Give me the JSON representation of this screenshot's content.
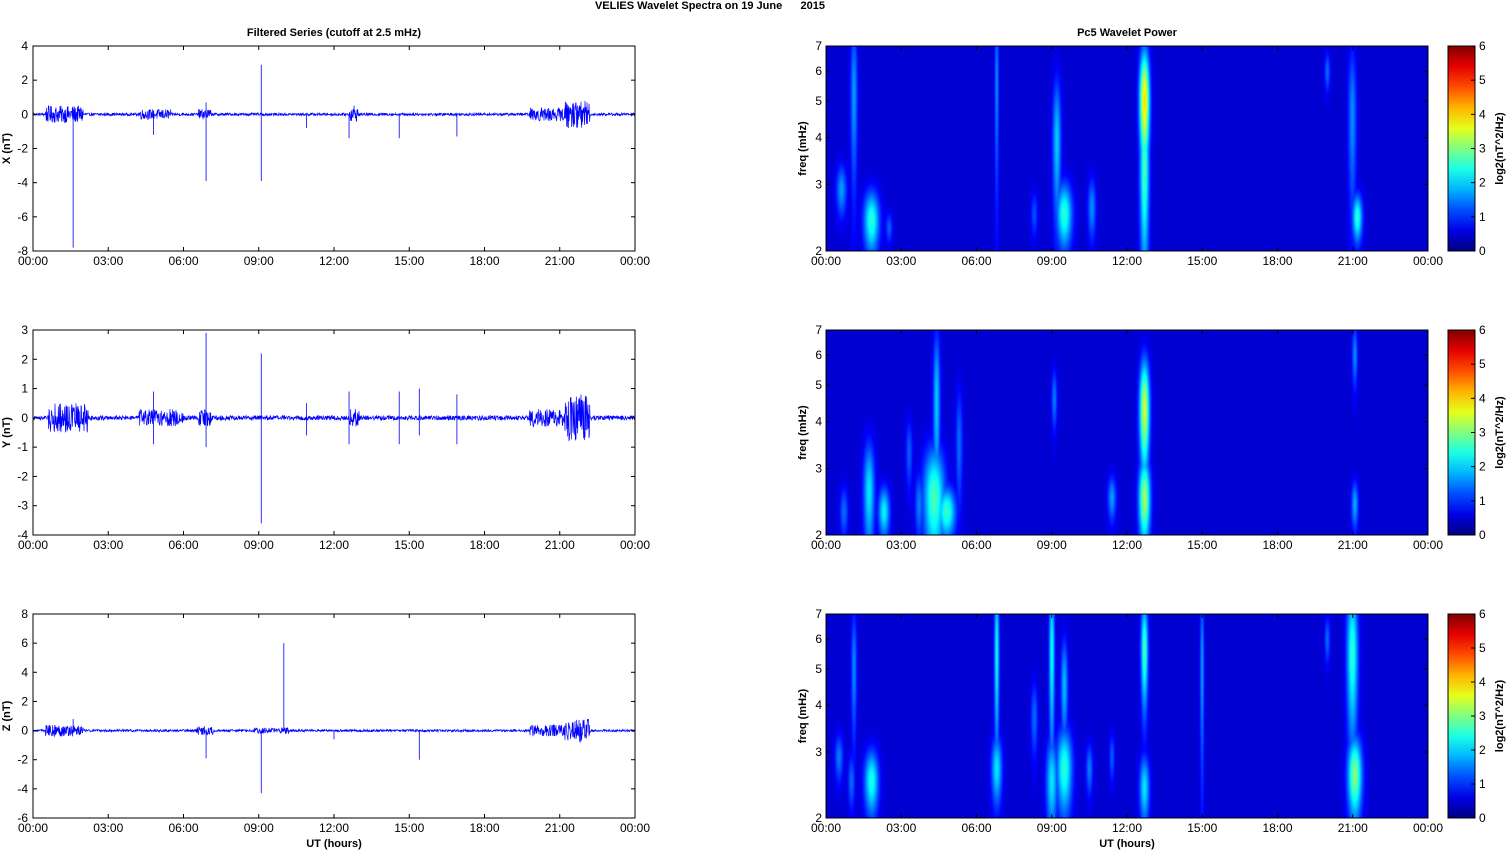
{
  "figure": {
    "suptitle": "VELIES Wavelet Spectra on 19 June      2015",
    "left_title": "Filtered Series (cutoff at 2.5 mHz)",
    "right_title": "Pc5 Wavelet Power",
    "xlabel": "UT (hours)"
  },
  "chart_data": [
    {
      "type": "line",
      "name": "X component filtered series",
      "ylabel": "X (nT)",
      "xlim": [
        0,
        24
      ],
      "ylim": [
        -8,
        4
      ],
      "x_ticks": [
        "00:00",
        "03:00",
        "06:00",
        "09:00",
        "12:00",
        "15:00",
        "18:00",
        "21:00",
        "00:00"
      ],
      "y_ticks": [
        "4",
        "2",
        "0",
        "-2",
        "-4",
        "-6",
        "-8"
      ],
      "color": "#0000ff",
      "noise_bursts": [
        [
          0.5,
          2.0,
          0.5
        ],
        [
          4.2,
          5.5,
          0.3
        ],
        [
          6.6,
          7.1,
          0.3
        ],
        [
          12.6,
          13.0,
          0.4
        ],
        [
          19.8,
          21.2,
          0.4
        ],
        [
          21.2,
          22.2,
          0.8
        ]
      ],
      "spikes": [
        [
          1.6,
          -7.8
        ],
        [
          4.8,
          -1.2
        ],
        [
          6.9,
          -3.9
        ],
        [
          6.9,
          0.7
        ],
        [
          9.1,
          2.9
        ],
        [
          9.1,
          -3.9
        ],
        [
          10.9,
          -0.8
        ],
        [
          12.6,
          -1.4
        ],
        [
          12.8,
          0.5
        ],
        [
          14.6,
          -1.4
        ],
        [
          16.9,
          -1.3
        ]
      ]
    },
    {
      "type": "line",
      "name": "Y component filtered series",
      "ylabel": "Y (nT)",
      "xlim": [
        0,
        24
      ],
      "ylim": [
        -4,
        3
      ],
      "x_ticks": [
        "00:00",
        "03:00",
        "06:00",
        "09:00",
        "12:00",
        "15:00",
        "18:00",
        "21:00",
        "00:00"
      ],
      "y_ticks": [
        "3",
        "2",
        "1",
        "0",
        "-1",
        "-2",
        "-3",
        "-4"
      ],
      "color": "#0000ff",
      "noise_bursts": [
        [
          0.6,
          2.2,
          0.5
        ],
        [
          4.2,
          6.0,
          0.3
        ],
        [
          6.6,
          7.1,
          0.3
        ],
        [
          12.6,
          13.0,
          0.3
        ],
        [
          19.8,
          21.2,
          0.3
        ],
        [
          21.2,
          22.2,
          0.8
        ]
      ],
      "spikes": [
        [
          4.8,
          0.9
        ],
        [
          4.8,
          -0.9
        ],
        [
          6.9,
          2.9
        ],
        [
          6.9,
          -1.0
        ],
        [
          9.1,
          2.2
        ],
        [
          9.1,
          -3.6
        ],
        [
          10.9,
          -0.6
        ],
        [
          10.9,
          0.5
        ],
        [
          12.6,
          0.9
        ],
        [
          12.6,
          -0.9
        ],
        [
          14.6,
          0.9
        ],
        [
          14.6,
          -0.9
        ],
        [
          15.4,
          1.0
        ],
        [
          15.4,
          -0.6
        ],
        [
          16.9,
          0.8
        ],
        [
          16.9,
          -0.9
        ]
      ]
    },
    {
      "type": "line",
      "name": "Z component filtered series",
      "ylabel": "Z (nT)",
      "xlim": [
        0,
        24
      ],
      "ylim": [
        -6,
        8
      ],
      "x_ticks": [
        "00:00",
        "03:00",
        "06:00",
        "09:00",
        "12:00",
        "15:00",
        "18:00",
        "21:00",
        "00:00"
      ],
      "y_ticks": [
        "8",
        "6",
        "4",
        "2",
        "0",
        "-2",
        "-4",
        "-6"
      ],
      "color": "#0000ff",
      "noise_bursts": [
        [
          0.5,
          2.0,
          0.4
        ],
        [
          6.5,
          7.2,
          0.3
        ],
        [
          8.8,
          10.2,
          0.2
        ],
        [
          19.8,
          21.2,
          0.4
        ],
        [
          21.2,
          22.2,
          0.8
        ]
      ],
      "spikes": [
        [
          1.6,
          0.8
        ],
        [
          6.9,
          -1.9
        ],
        [
          9.1,
          -4.3
        ],
        [
          10.0,
          6.0
        ],
        [
          12.0,
          -0.6
        ],
        [
          15.4,
          -2.0
        ]
      ]
    },
    {
      "type": "heatmap",
      "name": "X Pc5 wavelet power",
      "ylabel": "freq (mHz)",
      "colorbar_label": "log2(nT^2/Hz)",
      "xlim": [
        0,
        24
      ],
      "ylim": [
        2,
        7
      ],
      "y_scale": "log",
      "clim": [
        0,
        6
      ],
      "x_ticks": [
        "00:00",
        "03:00",
        "06:00",
        "09:00",
        "12:00",
        "15:00",
        "18:00",
        "21:00",
        "00:00"
      ],
      "y_ticks": [
        "2",
        "3",
        "4",
        "5",
        "6",
        "7"
      ],
      "colorbar_ticks": [
        "0",
        "1",
        "2",
        "3",
        "4",
        "5",
        "6"
      ],
      "blobs": [
        {
          "t": 0.6,
          "f": 2.9,
          "dt": 0.15,
          "df": 0.32,
          "p": 1.3
        },
        {
          "t": 1.1,
          "f": 5.2,
          "dt": 0.1,
          "df": 1.8,
          "p": 1.3
        },
        {
          "t": 1.8,
          "f": 2.4,
          "dt": 0.22,
          "df": 0.32,
          "p": 2.2
        },
        {
          "t": 2.5,
          "f": 2.3,
          "dt": 0.1,
          "df": 0.15,
          "p": 0.9
        },
        {
          "t": 6.8,
          "f": 5.5,
          "dt": 0.06,
          "df": 2.2,
          "p": 1.2
        },
        {
          "t": 8.3,
          "f": 2.5,
          "dt": 0.1,
          "df": 0.25,
          "p": 0.8
        },
        {
          "t": 9.2,
          "f": 3.9,
          "dt": 0.12,
          "df": 1.2,
          "p": 1.6
        },
        {
          "t": 9.5,
          "f": 2.5,
          "dt": 0.22,
          "df": 0.35,
          "p": 2.2
        },
        {
          "t": 10.6,
          "f": 2.6,
          "dt": 0.12,
          "df": 0.35,
          "p": 1.2
        },
        {
          "t": 12.7,
          "f": 5.0,
          "dt": 0.14,
          "df": 1.2,
          "p": 3.8
        },
        {
          "t": 12.7,
          "f": 3.3,
          "dt": 0.13,
          "df": 1.2,
          "p": 2.4
        },
        {
          "t": 20.0,
          "f": 6.0,
          "dt": 0.08,
          "df": 0.5,
          "p": 1.0
        },
        {
          "t": 21.0,
          "f": 4.5,
          "dt": 0.12,
          "df": 1.6,
          "p": 1.2
        },
        {
          "t": 21.2,
          "f": 2.45,
          "dt": 0.14,
          "df": 0.25,
          "p": 2.2
        }
      ]
    },
    {
      "type": "heatmap",
      "name": "Y Pc5 wavelet power",
      "ylabel": "freq (mHz)",
      "colorbar_label": "log2(nT^2/Hz)",
      "xlim": [
        0,
        24
      ],
      "ylim": [
        2,
        7
      ],
      "y_scale": "log",
      "clim": [
        0,
        6
      ],
      "x_ticks": [
        "00:00",
        "03:00",
        "06:00",
        "09:00",
        "12:00",
        "15:00",
        "18:00",
        "21:00",
        "00:00"
      ],
      "y_ticks": [
        "2",
        "3",
        "4",
        "5",
        "6",
        "7"
      ],
      "colorbar_ticks": [
        "0",
        "1",
        "2",
        "3",
        "4",
        "5",
        "6"
      ],
      "blobs": [
        {
          "t": 0.7,
          "f": 2.3,
          "dt": 0.12,
          "df": 0.25,
          "p": 1.0
        },
        {
          "t": 1.7,
          "f": 2.6,
          "dt": 0.16,
          "df": 0.6,
          "p": 1.8
        },
        {
          "t": 2.3,
          "f": 2.3,
          "dt": 0.16,
          "df": 0.25,
          "p": 1.9
        },
        {
          "t": 3.3,
          "f": 3.3,
          "dt": 0.1,
          "df": 0.5,
          "p": 0.9
        },
        {
          "t": 3.7,
          "f": 2.4,
          "dt": 0.12,
          "df": 0.35,
          "p": 1.1
        },
        {
          "t": 4.3,
          "f": 2.5,
          "dt": 0.3,
          "df": 0.6,
          "p": 2.4
        },
        {
          "t": 4.4,
          "f": 4.5,
          "dt": 0.1,
          "df": 1.6,
          "p": 1.6
        },
        {
          "t": 4.8,
          "f": 2.3,
          "dt": 0.25,
          "df": 0.25,
          "p": 2.3
        },
        {
          "t": 5.3,
          "f": 3.5,
          "dt": 0.1,
          "df": 0.9,
          "p": 1.0
        },
        {
          "t": 9.1,
          "f": 4.6,
          "dt": 0.08,
          "df": 0.6,
          "p": 1.1
        },
        {
          "t": 11.4,
          "f": 2.5,
          "dt": 0.12,
          "df": 0.25,
          "p": 1.3
        },
        {
          "t": 12.7,
          "f": 4.3,
          "dt": 0.14,
          "df": 1.0,
          "p": 3.3
        },
        {
          "t": 12.7,
          "f": 2.5,
          "dt": 0.16,
          "df": 0.45,
          "p": 3.0
        },
        {
          "t": 21.1,
          "f": 6.0,
          "dt": 0.08,
          "df": 0.8,
          "p": 1.2
        },
        {
          "t": 21.1,
          "f": 2.4,
          "dt": 0.1,
          "df": 0.25,
          "p": 1.4
        }
      ]
    },
    {
      "type": "heatmap",
      "name": "Z Pc5 wavelet power",
      "ylabel": "freq (mHz)",
      "colorbar_label": "log2(nT^2/Hz)",
      "xlim": [
        0,
        24
      ],
      "ylim": [
        2,
        7
      ],
      "y_scale": "log",
      "clim": [
        0,
        6
      ],
      "x_ticks": [
        "00:00",
        "03:00",
        "06:00",
        "09:00",
        "12:00",
        "15:00",
        "18:00",
        "21:00",
        "00:00"
      ],
      "y_ticks": [
        "2",
        "3",
        "4",
        "5",
        "6",
        "7"
      ],
      "colorbar_ticks": [
        "0",
        "1",
        "2",
        "3",
        "4",
        "5",
        "6"
      ],
      "blobs": [
        {
          "t": 0.5,
          "f": 2.9,
          "dt": 0.12,
          "df": 0.3,
          "p": 1.1
        },
        {
          "t": 1.0,
          "f": 2.5,
          "dt": 0.1,
          "df": 0.3,
          "p": 1.0
        },
        {
          "t": 1.1,
          "f": 5.0,
          "dt": 0.08,
          "df": 1.4,
          "p": 1.2
        },
        {
          "t": 1.8,
          "f": 2.5,
          "dt": 0.2,
          "df": 0.35,
          "p": 2.1
        },
        {
          "t": 6.8,
          "f": 2.7,
          "dt": 0.15,
          "df": 0.4,
          "p": 1.8
        },
        {
          "t": 6.8,
          "f": 5.5,
          "dt": 0.07,
          "df": 2.0,
          "p": 2.0
        },
        {
          "t": 8.3,
          "f": 3.7,
          "dt": 0.1,
          "df": 0.6,
          "p": 1.0
        },
        {
          "t": 9.0,
          "f": 2.5,
          "dt": 0.16,
          "df": 0.5,
          "p": 1.8
        },
        {
          "t": 9.0,
          "f": 5.5,
          "dt": 0.08,
          "df": 2.0,
          "p": 2.0
        },
        {
          "t": 9.5,
          "f": 2.7,
          "dt": 0.22,
          "df": 0.5,
          "p": 2.2
        },
        {
          "t": 9.5,
          "f": 4.5,
          "dt": 0.1,
          "df": 1.0,
          "p": 1.5
        },
        {
          "t": 10.5,
          "f": 2.7,
          "dt": 0.1,
          "df": 0.3,
          "p": 1.1
        },
        {
          "t": 11.4,
          "f": 2.9,
          "dt": 0.08,
          "df": 0.3,
          "p": 0.9
        },
        {
          "t": 12.7,
          "f": 5.6,
          "dt": 0.1,
          "df": 1.3,
          "p": 2.4
        },
        {
          "t": 12.7,
          "f": 2.4,
          "dt": 0.14,
          "df": 0.35,
          "p": 1.8
        },
        {
          "t": 15.0,
          "f": 5.0,
          "dt": 0.06,
          "df": 2.0,
          "p": 1.3
        },
        {
          "t": 20.0,
          "f": 6.0,
          "dt": 0.08,
          "df": 0.6,
          "p": 1.0
        },
        {
          "t": 21.0,
          "f": 5.5,
          "dt": 0.16,
          "df": 1.8,
          "p": 2.2
        },
        {
          "t": 21.1,
          "f": 2.6,
          "dt": 0.2,
          "df": 0.45,
          "p": 2.8
        }
      ]
    }
  ]
}
